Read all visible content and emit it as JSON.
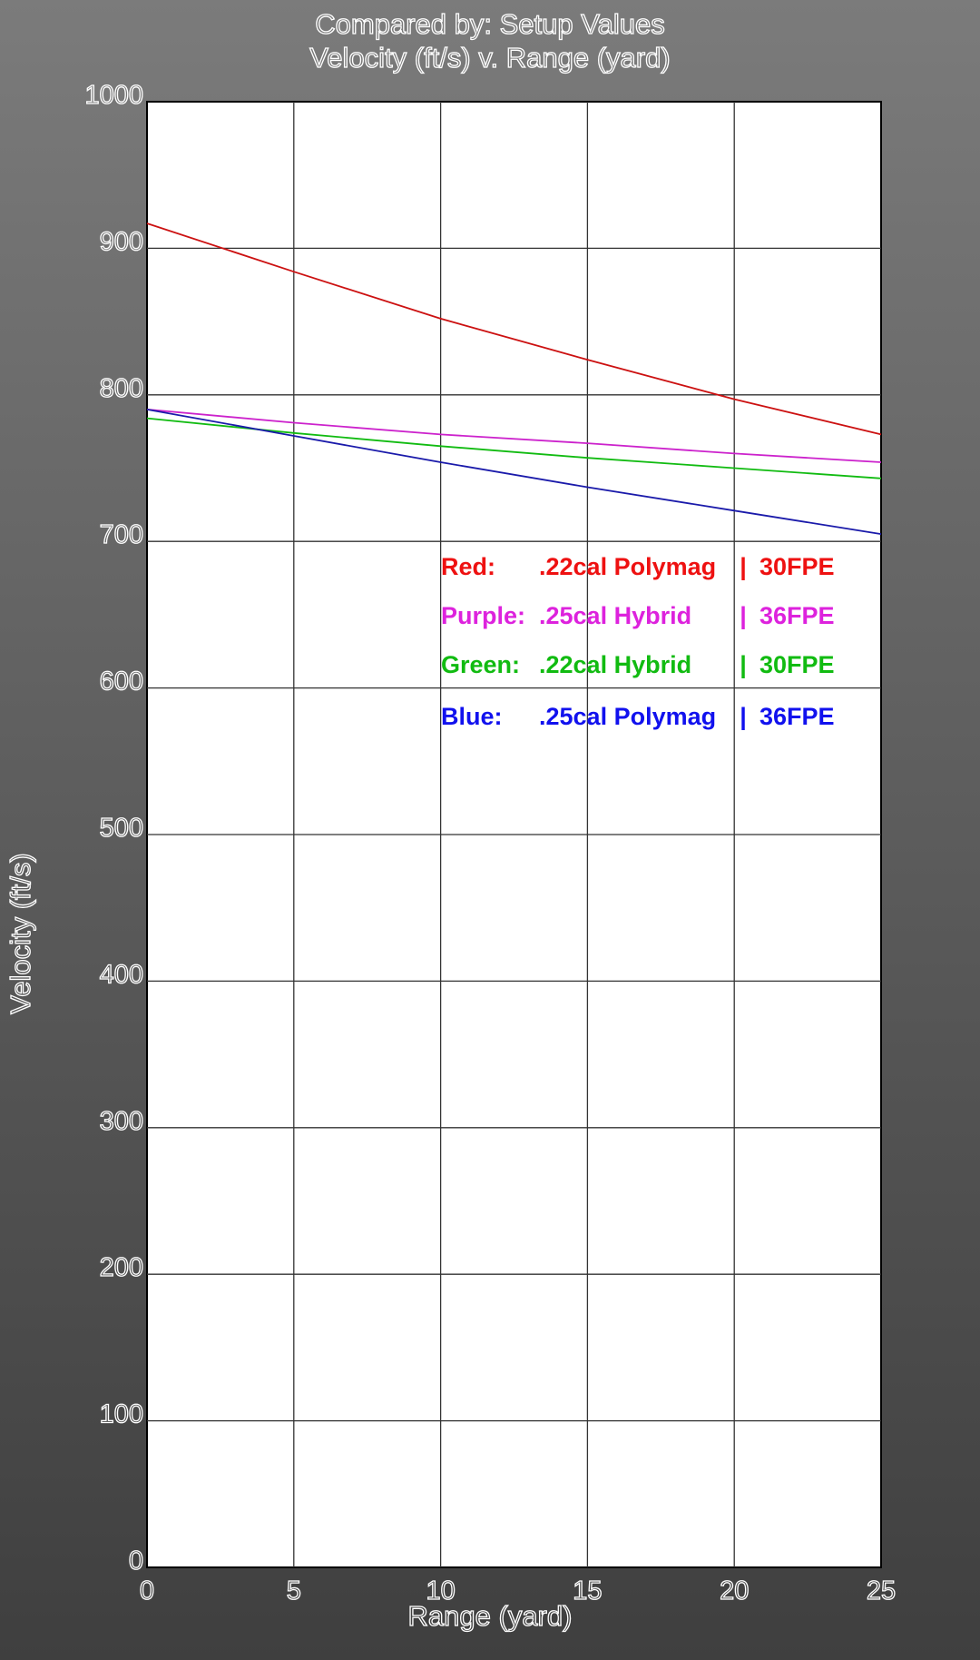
{
  "chart_data": {
    "type": "line",
    "title": "Compared by: Setup Values",
    "subtitle": "Velocity (ft/s) v. Range (yard)",
    "xlabel": "Range (yard)",
    "ylabel": "Velocity (ft/s)",
    "xlim": [
      0,
      25
    ],
    "ylim": [
      0,
      1000
    ],
    "xticks": [
      "0",
      "5",
      "10",
      "15",
      "20",
      "25"
    ],
    "yticks": [
      "0",
      "100",
      "200",
      "300",
      "400",
      "500",
      "600",
      "700",
      "800",
      "900",
      "1000"
    ],
    "grid": true,
    "series": [
      {
        "color": "#cc1111",
        "x": [
          0,
          5,
          10,
          15,
          20,
          25
        ],
        "y": [
          917,
          884,
          852,
          824,
          797,
          773
        ]
      },
      {
        "color": "#cc22cc",
        "x": [
          0,
          5,
          10,
          15,
          20,
          25
        ],
        "y": [
          790,
          781,
          773,
          767,
          760,
          754
        ]
      },
      {
        "color": "#11bb11",
        "x": [
          0,
          5,
          10,
          15,
          20,
          25
        ],
        "y": [
          784,
          774,
          765,
          757,
          750,
          743
        ]
      },
      {
        "color": "#1a1aaa",
        "x": [
          0,
          5,
          10,
          15,
          20,
          25
        ],
        "y": [
          790,
          772,
          754,
          737,
          721,
          705
        ]
      }
    ],
    "legend": {
      "placement": "center-right",
      "entries": [
        {
          "color": "#ee1111",
          "name": "Red:",
          "ammo": ".22cal Polymag",
          "sep": "|",
          "power": "30FPE"
        },
        {
          "color": "#dd22dd",
          "name": "Purple:",
          "ammo": ".25cal Hybrid",
          "sep": "|",
          "power": "36FPE"
        },
        {
          "color": "#11bb11",
          "name": "Green:",
          "ammo": ".22cal Hybrid",
          "sep": "|",
          "power": "30FPE"
        },
        {
          "color": "#1111ee",
          "name": "Blue:",
          "ammo": ".25cal Polymag",
          "sep": "|",
          "power": "36FPE"
        }
      ]
    }
  }
}
